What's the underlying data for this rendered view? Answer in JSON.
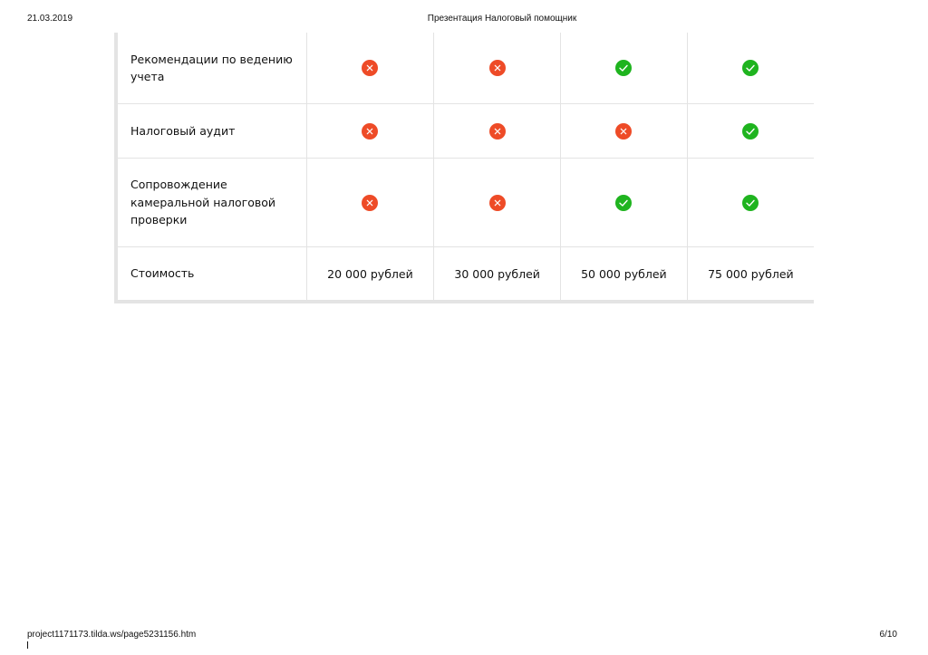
{
  "header": {
    "date": "21.03.2019",
    "title": "Презентация Налоговый помощник"
  },
  "footer": {
    "url": "project1171173.tilda.ws/page5231156.htm",
    "page": "6/10"
  },
  "colors": {
    "no": "#ee4b27",
    "yes": "#1fb41f",
    "grid": "#e3e3e3"
  },
  "table": {
    "rows": [
      {
        "label": "Рекомендации по ведению учета",
        "cells": [
          "no",
          "no",
          "yes",
          "yes"
        ]
      },
      {
        "label": "Налоговый аудит",
        "cells": [
          "no",
          "no",
          "no",
          "yes"
        ]
      },
      {
        "label": "Сопровождение камеральной налоговой проверки",
        "cells": [
          "no",
          "no",
          "yes",
          "yes"
        ]
      }
    ],
    "price_row": {
      "label": "Стоимость",
      "values": [
        "20 000 рублей",
        "30 000 рублей",
        "50 000 рублей",
        "75 000 рублей"
      ]
    }
  },
  "icons": {
    "no": "cross-circle-icon",
    "yes": "check-circle-icon"
  }
}
